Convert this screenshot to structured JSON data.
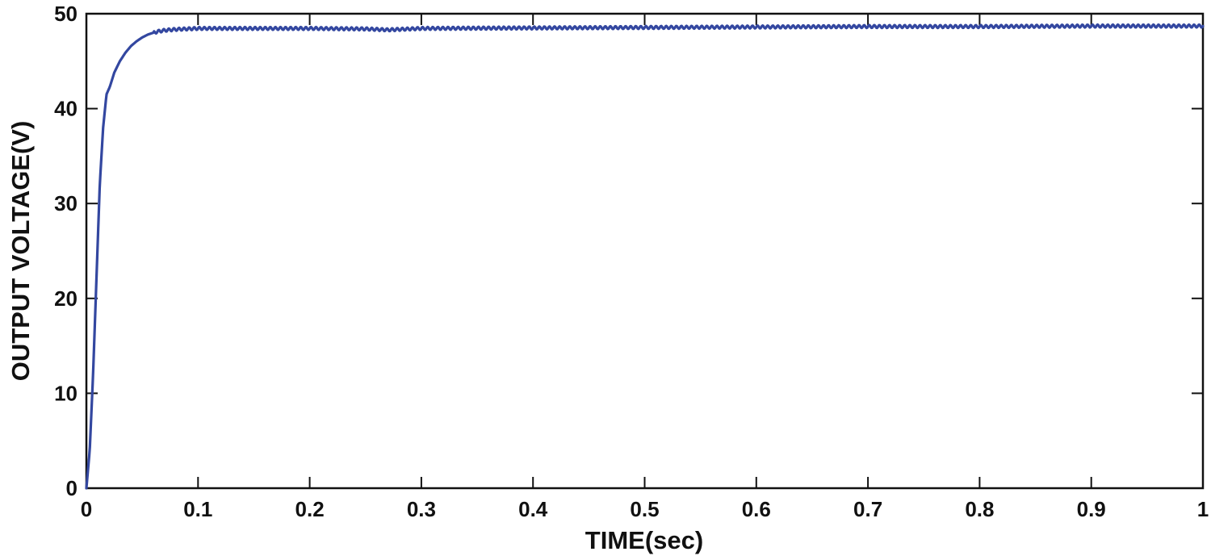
{
  "chart_data": {
    "type": "line",
    "title": "",
    "xlabel": "TIME(sec)",
    "ylabel": "OUTPUT VOLTAGE(V)",
    "xlim": [
      0,
      1
    ],
    "ylim": [
      0,
      50
    ],
    "xticks": [
      0,
      0.1,
      0.2,
      0.3,
      0.4,
      0.5,
      0.6,
      0.7,
      0.8,
      0.9,
      1
    ],
    "xtick_labels": [
      "0",
      "0.1",
      "0.2",
      "0.3",
      "0.4",
      "0.5",
      "0.6",
      "0.7",
      "0.8",
      "0.9",
      "1"
    ],
    "yticks": [
      0,
      10,
      20,
      30,
      40,
      50
    ],
    "ytick_labels": [
      "0",
      "10",
      "20",
      "30",
      "40",
      "50"
    ],
    "grid": false,
    "legend": "none",
    "series": [
      {
        "color": "#3347a0",
        "x": [
          0,
          0.003,
          0.006,
          0.009,
          0.012,
          0.015,
          0.018,
          0.021,
          0.025,
          0.03,
          0.035,
          0.04,
          0.045,
          0.05,
          0.055,
          0.06,
          0.065,
          0.07,
          0.08,
          0.09,
          0.1,
          0.12,
          0.15,
          0.2,
          0.25,
          0.27,
          0.3,
          0.4,
          0.5,
          0.6,
          0.7,
          0.8,
          0.9,
          1.0
        ],
        "y": [
          0,
          4,
          12,
          22,
          32,
          38,
          41.5,
          42.3,
          43.8,
          45.0,
          45.9,
          46.6,
          47.1,
          47.5,
          47.8,
          48.0,
          48.15,
          48.25,
          48.35,
          48.4,
          48.45,
          48.45,
          48.45,
          48.45,
          48.4,
          48.3,
          48.45,
          48.5,
          48.55,
          48.6,
          48.65,
          48.65,
          48.7,
          48.7
        ]
      }
    ]
  }
}
